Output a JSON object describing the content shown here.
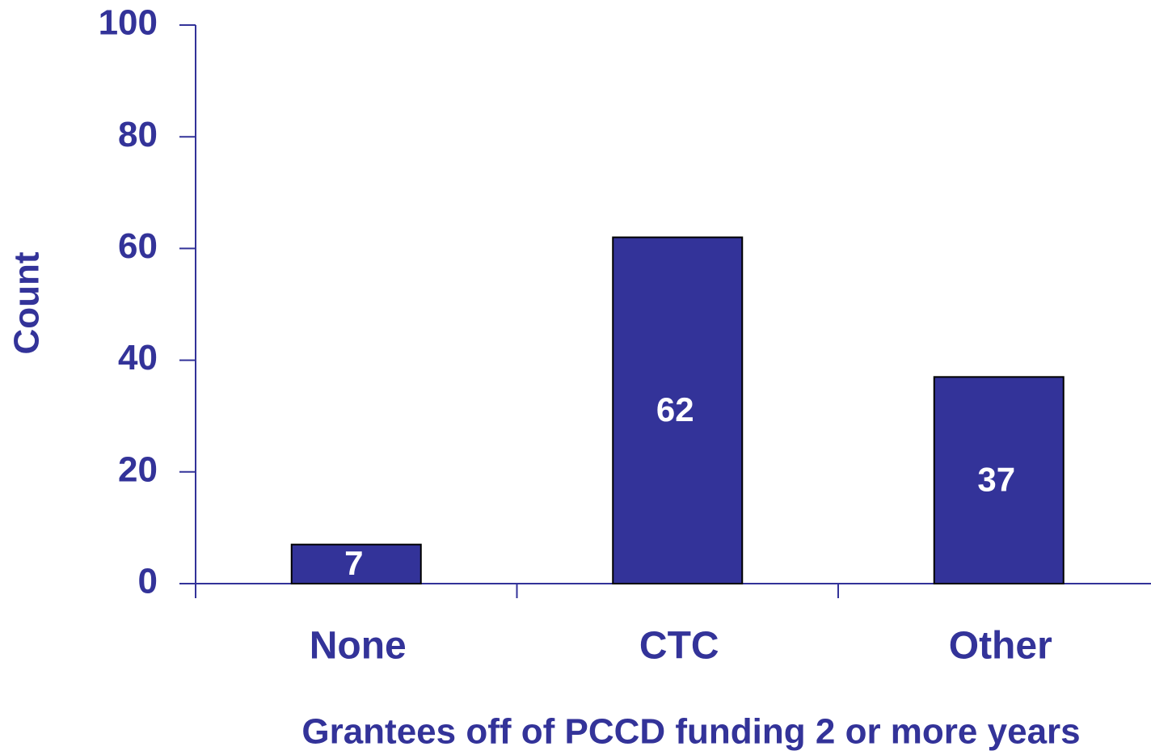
{
  "chart_data": {
    "type": "bar",
    "categories": [
      "None",
      "CTC",
      "Other"
    ],
    "values": [
      7,
      62,
      37
    ],
    "color": "#333399",
    "ylim": [
      0,
      100
    ],
    "yticks": [
      0,
      20,
      40,
      60,
      80,
      100
    ],
    "y_label": "Count",
    "x_label": "Grantees off of PCCD funding 2 or more years"
  }
}
